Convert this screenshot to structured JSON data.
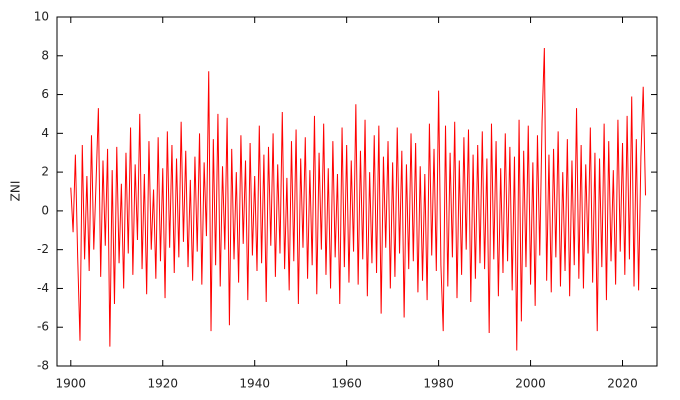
{
  "chart_data": {
    "type": "line",
    "ylabel": "ZNI",
    "color": "#ff0000",
    "xlim": [
      1897,
      2027.5
    ],
    "xticks": [
      1900,
      1920,
      1940,
      1960,
      1980,
      2000,
      2020
    ],
    "ylim": [
      -8,
      10
    ],
    "yticks": [
      -8,
      -6,
      -4,
      -2,
      0,
      2,
      4,
      6,
      8,
      10
    ],
    "x": [
      1900,
      1900.5,
      1901,
      1901.5,
      1902,
      1902.5,
      1903,
      1903.5,
      1904,
      1904.5,
      1905,
      1905.5,
      1906,
      1906.5,
      1907,
      1907.5,
      1908,
      1908.5,
      1909,
      1909.5,
      1910,
      1910.5,
      1911,
      1911.5,
      1912,
      1912.5,
      1913,
      1913.5,
      1914,
      1914.5,
      1915,
      1915.5,
      1916,
      1916.5,
      1917,
      1917.5,
      1918,
      1918.5,
      1919,
      1919.5,
      1920,
      1920.5,
      1921,
      1921.5,
      1922,
      1922.5,
      1923,
      1923.5,
      1924,
      1924.5,
      1925,
      1925.5,
      1926,
      1926.5,
      1927,
      1927.5,
      1928,
      1928.5,
      1929,
      1929.5,
      1930,
      1930.5,
      1931,
      1931.5,
      1932,
      1932.5,
      1933,
      1933.5,
      1934,
      1934.5,
      1935,
      1935.5,
      1936,
      1936.5,
      1937,
      1937.5,
      1938,
      1938.5,
      1939,
      1939.5,
      1940,
      1940.5,
      1941,
      1941.5,
      1942,
      1942.5,
      1943,
      1943.5,
      1944,
      1944.5,
      1945,
      1945.5,
      1946,
      1946.5,
      1947,
      1947.5,
      1948,
      1948.5,
      1949,
      1949.5,
      1950,
      1950.5,
      1951,
      1951.5,
      1952,
      1952.5,
      1953,
      1953.5,
      1954,
      1954.5,
      1955,
      1955.5,
      1956,
      1956.5,
      1957,
      1957.5,
      1958,
      1958.5,
      1959,
      1959.5,
      1960,
      1960.5,
      1961,
      1961.5,
      1962,
      1962.5,
      1963,
      1963.5,
      1964,
      1964.5,
      1965,
      1965.5,
      1966,
      1966.5,
      1967,
      1967.5,
      1968,
      1968.5,
      1969,
      1969.5,
      1970,
      1970.5,
      1971,
      1971.5,
      1972,
      1972.5,
      1973,
      1973.5,
      1974,
      1974.5,
      1975,
      1975.5,
      1976,
      1976.5,
      1977,
      1977.5,
      1978,
      1978.5,
      1979,
      1979.5,
      1980,
      1980.5,
      1981,
      1981.5,
      1982,
      1982.5,
      1983,
      1983.5,
      1984,
      1984.5,
      1985,
      1985.5,
      1986,
      1986.5,
      1987,
      1987.5,
      1988,
      1988.5,
      1989,
      1989.5,
      1990,
      1990.5,
      1991,
      1991.5,
      1992,
      1992.5,
      1993,
      1993.5,
      1994,
      1994.5,
      1995,
      1995.5,
      1996,
      1996.5,
      1997,
      1997.5,
      1998,
      1998.5,
      1999,
      1999.5,
      2000,
      2000.5,
      2001,
      2001.5,
      2002,
      2002.5,
      2003,
      2003.5,
      2004,
      2004.5,
      2005,
      2005.5,
      2006,
      2006.5,
      2007,
      2007.5,
      2008,
      2008.5,
      2009,
      2009.5,
      2010,
      2010.5,
      2011,
      2011.5,
      2012,
      2012.5,
      2013,
      2013.5,
      2014,
      2014.5,
      2015,
      2015.5,
      2016,
      2016.5,
      2017,
      2017.5,
      2018,
      2018.5,
      2019,
      2019.5,
      2020,
      2020.5,
      2021,
      2021.5,
      2022,
      2022.5,
      2023,
      2023.5,
      2024,
      2024.5,
      2025
    ],
    "values": [
      1.2,
      -1.1,
      2.9,
      -2.4,
      -6.7,
      3.4,
      -2.5,
      1.8,
      -3.1,
      3.9,
      -2.0,
      1.5,
      5.3,
      -3.4,
      2.6,
      -1.8,
      3.2,
      -7.0,
      2.1,
      -4.8,
      3.3,
      -2.7,
      1.4,
      -4.0,
      3.0,
      -2.2,
      4.3,
      -3.3,
      2.4,
      -1.5,
      5.0,
      -3.0,
      1.9,
      -4.3,
      3.6,
      -2.0,
      1.1,
      -3.5,
      3.8,
      -2.6,
      2.2,
      -4.5,
      4.1,
      -1.9,
      3.4,
      -3.2,
      2.7,
      -2.4,
      4.6,
      -1.6,
      3.1,
      -2.9,
      1.6,
      -3.6,
      2.8,
      -2.1,
      4.0,
      -3.8,
      2.5,
      -1.3,
      7.2,
      -6.2,
      3.7,
      -2.8,
      5.0,
      -3.9,
      2.3,
      -2.0,
      4.8,
      -5.9,
      3.2,
      -2.5,
      2.0,
      -3.7,
      3.9,
      -1.7,
      2.6,
      -4.6,
      3.5,
      -2.3,
      1.8,
      -3.1,
      4.4,
      -2.7,
      2.9,
      -4.7,
      3.3,
      -1.8,
      4.0,
      -3.4,
      2.4,
      -2.2,
      5.1,
      -3.0,
      1.7,
      -4.1,
      3.6,
      -2.6,
      4.2,
      -4.8,
      2.7,
      -1.9,
      3.8,
      -3.5,
      2.1,
      -2.8,
      4.9,
      -4.3,
      3.0,
      -2.0,
      4.5,
      -3.3,
      2.2,
      -4.0,
      3.6,
      -2.4,
      1.9,
      -4.8,
      4.3,
      -2.9,
      3.4,
      -3.7,
      2.6,
      -2.1,
      5.5,
      -3.8,
      3.1,
      -2.5,
      4.7,
      -4.4,
      2.0,
      -2.7,
      3.9,
      -3.2,
      4.4,
      -5.3,
      2.8,
      -1.9,
      3.6,
      -4.0,
      2.5,
      -3.4,
      4.3,
      -2.2,
      3.1,
      -5.5,
      2.4,
      -3.0,
      4.0,
      -2.6,
      3.5,
      -4.2,
      2.3,
      -3.6,
      1.9,
      -4.6,
      4.5,
      -2.3,
      3.2,
      -3.1,
      6.2,
      -2.8,
      -6.2,
      4.4,
      -3.9,
      3.0,
      -2.4,
      4.6,
      -4.5,
      2.6,
      -3.3,
      3.8,
      -2.0,
      4.2,
      -4.7,
      2.9,
      -3.5,
      3.4,
      -2.7,
      4.1,
      -3.0,
      2.7,
      -6.3,
      4.5,
      -2.5,
      3.6,
      -4.4,
      2.2,
      -3.2,
      4.0,
      -2.6,
      3.3,
      -4.1,
      2.8,
      -7.2,
      4.7,
      -5.7,
      3.1,
      -2.9,
      4.4,
      -3.8,
      2.5,
      -4.9,
      3.9,
      -2.3,
      4.6,
      8.4,
      -3.6,
      2.9,
      -4.2,
      3.2,
      -2.4,
      4.1,
      -3.9,
      2.0,
      -3.1,
      3.7,
      -4.4,
      2.6,
      -2.8,
      5.3,
      -3.5,
      3.4,
      -4.0,
      2.4,
      -2.2,
      4.3,
      -3.7,
      3.0,
      -6.2,
      2.7,
      -2.9,
      4.5,
      -4.6,
      3.6,
      -2.6,
      2.1,
      -3.8,
      4.7,
      -2.1,
      3.5,
      -3.3,
      4.9,
      -2.5,
      5.9,
      -3.9,
      3.7,
      -4.1,
      2.8,
      6.4,
      0.8
    ]
  }
}
